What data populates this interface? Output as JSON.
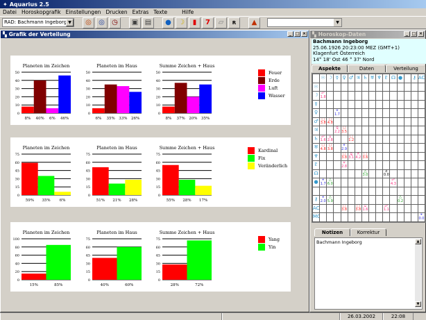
{
  "app": {
    "title": "Aquarius 2.5"
  },
  "menu": [
    "Datei",
    "Horoskopgrafik",
    "Einstellungen",
    "Drucken",
    "Extras",
    "Texte",
    "Hilfe"
  ],
  "toolbar": {
    "chart_select": "RAD: Bachmann Ingeborg",
    "buttons": [
      {
        "icon": "radix-wheel-icon",
        "glyph": "◎",
        "color": "#c04000"
      },
      {
        "icon": "transit-wheel-icon",
        "glyph": "◎",
        "color": "#2040a0"
      },
      {
        "icon": "clock-wheel-icon",
        "glyph": "◷",
        "color": "#800000"
      },
      {
        "icon": "print-preview-icon",
        "glyph": "▣",
        "color": "#404040"
      },
      {
        "icon": "printer-icon",
        "glyph": "▤",
        "color": "#404040"
      },
      {
        "icon": "globe-icon",
        "glyph": "●",
        "color": "#1060c0"
      },
      {
        "icon": "moon-icon",
        "glyph": "☽",
        "color": "#d0b000"
      },
      {
        "icon": "bar-chart-icon",
        "glyph": "▮",
        "color": "#e00000"
      },
      {
        "icon": "seven-icon",
        "glyph": "7",
        "color": "#e00000"
      },
      {
        "icon": "document-icon",
        "glyph": "▱",
        "color": "#808080"
      },
      {
        "icon": "r-icon",
        "glyph": "R",
        "color": "#000000"
      },
      {
        "icon": "pyramid-icon",
        "glyph": "▲",
        "color": "#c03000"
      }
    ]
  },
  "chart_window": {
    "title": "Grafik der Verteilung"
  },
  "legends": [
    [
      {
        "label": "Feuer",
        "color": "#ff0000"
      },
      {
        "label": "Erde",
        "color": "#800000"
      },
      {
        "label": "Luft",
        "color": "#ff00ff"
      },
      {
        "label": "Wasser",
        "color": "#0000ff"
      }
    ],
    [
      {
        "label": "Kardinal",
        "color": "#ff0000"
      },
      {
        "label": "Fix",
        "color": "#00ff00"
      },
      {
        "label": "Veränderlich",
        "color": "#ffff00"
      }
    ],
    [
      {
        "label": "Yang",
        "color": "#ff0000"
      },
      {
        "label": "Yin",
        "color": "#00ff00"
      }
    ]
  ],
  "chart_data": [
    {
      "type": "bar",
      "row": 0,
      "title": "Planeten im Zeichen",
      "yticks": [
        0,
        10,
        20,
        30,
        40,
        50
      ],
      "ylim": [
        0,
        50
      ],
      "values": [
        8,
        40,
        6,
        46
      ],
      "labels": [
        "8%",
        "40%",
        "6%",
        "46%"
      ],
      "colors": [
        "#ff0000",
        "#800000",
        "#ff00ff",
        "#0000ff"
      ]
    },
    {
      "type": "bar",
      "row": 0,
      "title": "Planeten im Haus",
      "yticks": [
        0,
        10,
        20,
        30,
        40,
        50
      ],
      "ylim": [
        0,
        50
      ],
      "values": [
        6,
        35,
        33,
        26
      ],
      "labels": [
        "6%",
        "35%",
        "33%",
        "26%"
      ],
      "colors": [
        "#ff0000",
        "#800000",
        "#ff00ff",
        "#0000ff"
      ]
    },
    {
      "type": "bar",
      "row": 0,
      "title": "Summe Zeichen + Haus",
      "yticks": [
        0,
        10,
        20,
        30,
        40,
        50
      ],
      "ylim": [
        0,
        50
      ],
      "values": [
        8,
        37,
        20,
        35
      ],
      "labels": [
        "8%",
        "37%",
        "20%",
        "35%"
      ],
      "colors": [
        "#ff0000",
        "#800000",
        "#ff00ff",
        "#0000ff"
      ]
    },
    {
      "type": "bar",
      "row": 1,
      "title": "Planeten im Zeichen",
      "yticks": [
        0,
        15,
        30,
        45,
        60,
        75
      ],
      "ylim": [
        0,
        75
      ],
      "values": [
        59,
        35,
        6
      ],
      "labels": [
        "59%",
        "35%",
        "6%"
      ],
      "colors": [
        "#ff0000",
        "#00ff00",
        "#ffff00"
      ]
    },
    {
      "type": "bar",
      "row": 1,
      "title": "Planeten im Haus",
      "yticks": [
        0,
        15,
        30,
        45,
        60,
        75
      ],
      "ylim": [
        0,
        75
      ],
      "values": [
        51,
        21,
        28
      ],
      "labels": [
        "51%",
        "21%",
        "28%"
      ],
      "colors": [
        "#ff0000",
        "#00ff00",
        "#ffff00"
      ]
    },
    {
      "type": "bar",
      "row": 1,
      "title": "Summe Zeichen + Haus",
      "yticks": [
        0,
        15,
        30,
        45,
        60,
        75
      ],
      "ylim": [
        0,
        75
      ],
      "values": [
        55,
        28,
        17
      ],
      "labels": [
        "55%",
        "28%",
        "17%"
      ],
      "colors": [
        "#ff0000",
        "#00ff00",
        "#ffff00"
      ]
    },
    {
      "type": "bar",
      "row": 2,
      "title": "Planeten im Zeichen",
      "yticks": [
        0,
        20,
        40,
        60,
        80,
        100
      ],
      "ylim": [
        0,
        100
      ],
      "values": [
        15,
        85
      ],
      "labels": [
        "15%",
        "85%"
      ],
      "colors": [
        "#ff0000",
        "#00ff00"
      ]
    },
    {
      "type": "bar",
      "row": 2,
      "title": "Planeten im Haus",
      "yticks": [
        0,
        15,
        30,
        45,
        60,
        75
      ],
      "ylim": [
        0,
        75
      ],
      "values": [
        40,
        60
      ],
      "labels": [
        "40%",
        "60%"
      ],
      "colors": [
        "#ff0000",
        "#00ff00"
      ]
    },
    {
      "type": "bar",
      "row": 2,
      "title": "Summe Zeichen + Haus",
      "yticks": [
        0,
        15,
        30,
        45,
        60,
        75
      ],
      "ylim": [
        0,
        75
      ],
      "values": [
        28,
        72
      ],
      "labels": [
        "28%",
        "72%"
      ],
      "colors": [
        "#ff0000",
        "#00ff00"
      ]
    }
  ],
  "horoskop": {
    "title": "Horoskop-Daten",
    "name": "Bachmann Ingeborg",
    "date_line": "25.06.1926   20:23:00  MEZ (GMT+1)",
    "place_line": "Klagenfurt   Österreich",
    "coord_line": "14°  18' Ost   46 °  37' Nord",
    "tabs": [
      "Aspekte",
      "Daten",
      "Verteilung"
    ],
    "columns": [
      "☉",
      "☽",
      "☿",
      "♀",
      "♂",
      "♃",
      "♄",
      "♅",
      "♆",
      "♇",
      "☊",
      "●",
      "",
      "⚷",
      "AC"
    ],
    "rows": [
      "☉",
      "☽",
      "☿",
      "♀",
      "♂",
      "♃",
      "♄",
      "♅",
      "♆",
      "♇",
      "☊",
      "●",
      "",
      "⚷",
      "AC",
      "MC"
    ],
    "aspects": [
      {
        "r": 1,
        "c": 0,
        "s": "☍",
        "v": "1.8",
        "color": "#ff3080"
      },
      {
        "r": 3,
        "c": 2,
        "s": "⚹",
        "v": "1.7",
        "color": "#3030e0"
      },
      {
        "r": 4,
        "c": 0,
        "s": "□",
        "v": "3.8",
        "color": "#ff2020"
      },
      {
        "r": 4,
        "c": 1,
        "s": "□",
        "v": "4.8",
        "color": "#ff2020"
      },
      {
        "r": 5,
        "c": 2,
        "s": "⚼",
        "v": "2.2",
        "color": "#ff3080"
      },
      {
        "r": 5,
        "c": 3,
        "s": "□",
        "v": "3.5",
        "color": "#ff2020"
      },
      {
        "r": 6,
        "c": 0,
        "s": "☍",
        "v": "1.6",
        "color": "#ff3080"
      },
      {
        "r": 6,
        "c": 1,
        "s": "⚺",
        "v": "2.8",
        "color": "#ff3080"
      },
      {
        "r": 6,
        "c": 4,
        "s": "□",
        "v": "1.2",
        "color": "#ff2020"
      },
      {
        "r": 7,
        "c": 0,
        "s": "□",
        "v": "4.8",
        "color": "#ff2020"
      },
      {
        "r": 7,
        "c": 1,
        "s": "□",
        "v": "3.8",
        "color": "#ff2020"
      },
      {
        "r": 7,
        "c": 3,
        "s": "⚹",
        "v": "2.9",
        "color": "#3030e0"
      },
      {
        "r": 8,
        "c": 3,
        "s": "□",
        "v": "3.8",
        "color": "#ff2020"
      },
      {
        "r": 8,
        "c": 4,
        "s": "⚼",
        "v": "3.1",
        "color": "#ff3080"
      },
      {
        "r": 8,
        "c": 5,
        "s": "⚻",
        "v": "4.2",
        "color": "#ff3080"
      },
      {
        "r": 8,
        "c": 6,
        "s": "□",
        "v": "3.6",
        "color": "#ff2020"
      },
      {
        "r": 9,
        "c": 3,
        "s": "⚺",
        "v": "2.8",
        "color": "#ff3080"
      },
      {
        "r": 10,
        "c": 6,
        "s": "△",
        "v": "3.0",
        "color": "#20a020"
      },
      {
        "r": 10,
        "c": 9,
        "s": "☌",
        "v": "0.0",
        "color": "#000000"
      },
      {
        "r": 11,
        "c": 0,
        "s": "⚹",
        "v": "1.7",
        "color": "#3030e0"
      },
      {
        "r": 11,
        "c": 1,
        "s": "△",
        "v": "6.0",
        "color": "#20a020"
      },
      {
        "r": 11,
        "c": 10,
        "s": "☍",
        "v": "4.3",
        "color": "#ff3080"
      },
      {
        "r": 13,
        "c": 0,
        "s": "⚹",
        "v": "2.0",
        "color": "#3030e0"
      },
      {
        "r": 13,
        "c": 1,
        "s": "△",
        "v": "5.9",
        "color": "#20a020"
      },
      {
        "r": 13,
        "c": 11,
        "s": "△",
        "v": "0.2",
        "color": "#20a020"
      },
      {
        "r": 14,
        "c": 3,
        "s": "□",
        "v": "3.8",
        "color": "#ff2020"
      },
      {
        "r": 14,
        "c": 5,
        "s": "□",
        "v": "3.8",
        "color": "#ff2020"
      },
      {
        "r": 14,
        "c": 6,
        "s": "⚺",
        "v": "1.6",
        "color": "#ff3080"
      },
      {
        "r": 14,
        "c": 9,
        "s": "☍",
        "v": "1.1",
        "color": "#ff3080"
      },
      {
        "r": 15,
        "c": 14,
        "s": "⚹",
        "v": "0.0",
        "color": "#3030e0"
      }
    ],
    "note_tabs": [
      "Notizen",
      "Korrektur"
    ],
    "notes_text": "Bachmann Ingeborg"
  },
  "status": {
    "date": "26.03.2002",
    "time": "22:08"
  }
}
